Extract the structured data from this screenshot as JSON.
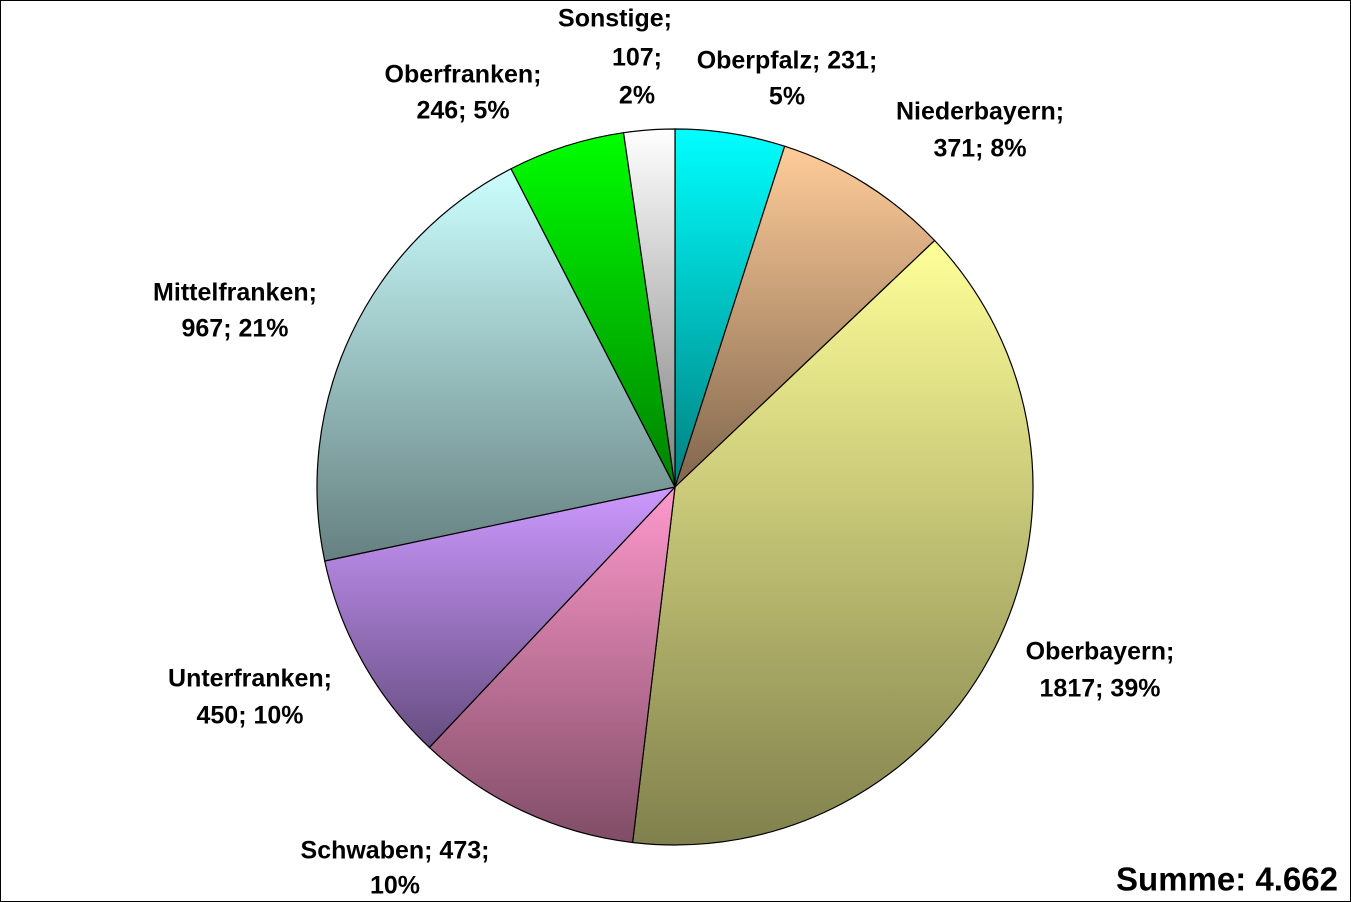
{
  "chart_data": {
    "type": "pie",
    "values": [
      231,
      371,
      1817,
      473,
      450,
      967,
      246,
      107
    ],
    "value_labels": [
      [
        "Oberpfalz; 231;",
        "5%"
      ],
      [
        "Niederbayern;",
        "371; 8%"
      ],
      [
        "Oberbayern;",
        "1817; 39%"
      ],
      [
        "Schwaben; 473;",
        "10%"
      ],
      [
        "Unterfranken;",
        "450; 10%"
      ],
      [
        "Mittelfranken;",
        "967; 21%"
      ],
      [
        "Oberfranken;",
        "246; 5%"
      ],
      [
        "Sonstige;",
        "107;",
        "2%"
      ]
    ],
    "colors": [
      "#00ffff",
      "#ffcc99",
      "#ffff99",
      "#ff99cc",
      "#cc99ff",
      "#ccffff",
      "#00ff00",
      "#ffffff"
    ],
    "total_label": "Summe: 4.662"
  }
}
